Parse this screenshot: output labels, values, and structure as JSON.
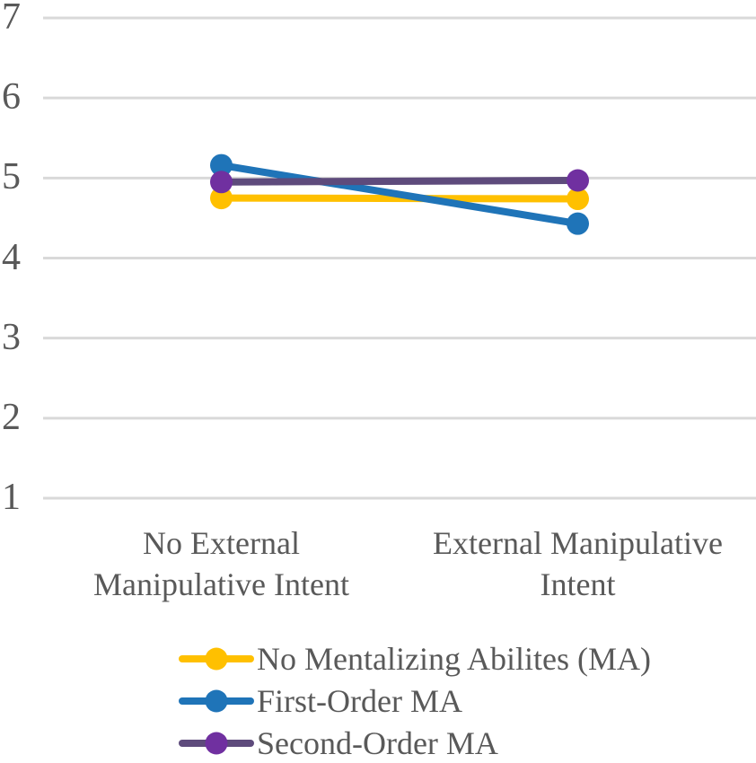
{
  "chart_data": {
    "type": "line",
    "title": "",
    "xlabel": "",
    "ylabel": "",
    "categories": [
      "No External\nManipulative Intent",
      "External Manipulative\nIntent"
    ],
    "series": [
      {
        "name": "No Mentalizing Abilites (MA)",
        "values": [
          4.75,
          4.74
        ],
        "color": "#FFC000",
        "marker_color": "#FFC000"
      },
      {
        "name": "First-Order MA",
        "values": [
          5.16,
          4.43
        ],
        "color": "#1F74B8",
        "marker_color": "#1F74B8"
      },
      {
        "name": "Second-Order MA",
        "values": [
          4.95,
          4.97
        ],
        "color": "#5E4B7C",
        "marker_color": "#7030A0"
      }
    ],
    "yticks": [
      7,
      6,
      5,
      4,
      3,
      2,
      1
    ],
    "ylim": [
      1,
      7
    ],
    "grid": "horizontal",
    "marker": "circle",
    "legend_position": "bottom-left",
    "colors": {
      "gridline": "#D9D9D9",
      "text": "#595959",
      "background": "#FFFFFF"
    }
  }
}
